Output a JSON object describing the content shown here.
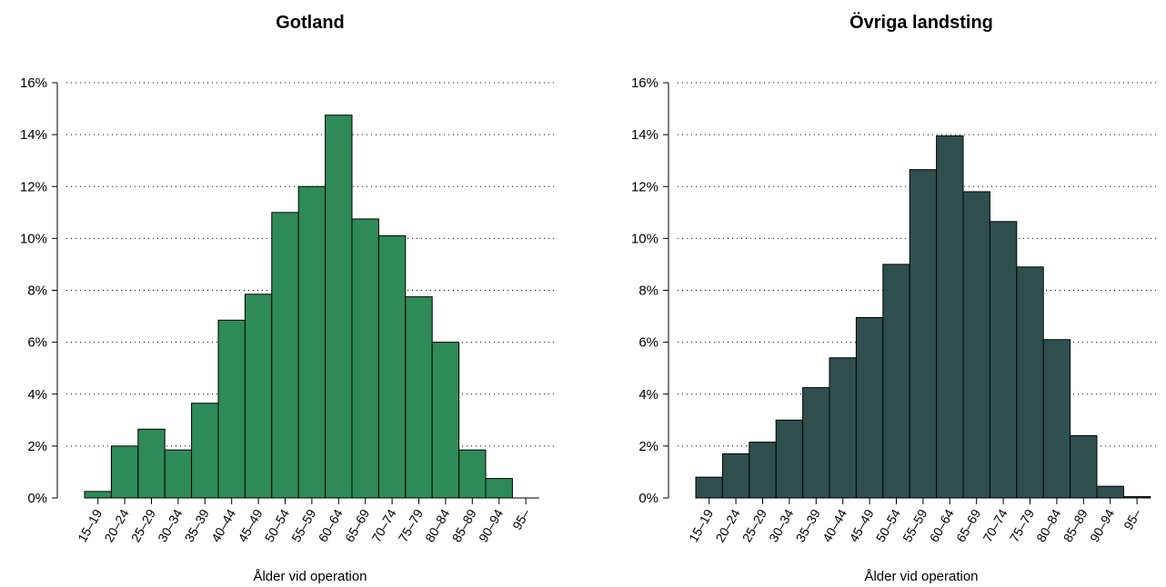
{
  "chart_data": [
    {
      "type": "bar",
      "title": "Gotland",
      "xlabel": "Ålder vid operation",
      "ylabel": "",
      "ylim": [
        0,
        16
      ],
      "yticks": [
        "0%",
        "2%",
        "4%",
        "6%",
        "8%",
        "10%",
        "12%",
        "14%",
        "16%"
      ],
      "grid": "horizontal dotted",
      "color": "#2e8b57",
      "categories": [
        "15–19",
        "20–24",
        "25–29",
        "30–34",
        "35–39",
        "40–44",
        "45–49",
        "50–54",
        "55–59",
        "60–64",
        "65–69",
        "70–74",
        "75–79",
        "80–84",
        "85–89",
        "90–94",
        "95–"
      ],
      "values": [
        0.25,
        2.0,
        2.65,
        1.85,
        3.65,
        6.85,
        7.85,
        11.0,
        12.0,
        14.75,
        10.75,
        10.1,
        7.75,
        6.0,
        1.85,
        0.75,
        0.0
      ]
    },
    {
      "type": "bar",
      "title": "Övriga landsting",
      "xlabel": "Ålder vid operation",
      "ylabel": "",
      "ylim": [
        0,
        16
      ],
      "yticks": [
        "0%",
        "2%",
        "4%",
        "6%",
        "8%",
        "10%",
        "12%",
        "14%",
        "16%"
      ],
      "grid": "horizontal dotted",
      "color": "#2f4f4f",
      "categories": [
        "15–19",
        "20–24",
        "25–29",
        "30–34",
        "35–39",
        "40–44",
        "45–49",
        "50–54",
        "55–59",
        "60–64",
        "65–69",
        "70–74",
        "75–79",
        "80–84",
        "85–89",
        "90–94",
        "95–"
      ],
      "values": [
        0.8,
        1.7,
        2.15,
        3.0,
        4.25,
        5.4,
        6.95,
        9.0,
        12.65,
        13.95,
        11.8,
        10.65,
        8.9,
        6.1,
        2.4,
        0.45,
        0.05
      ]
    }
  ]
}
